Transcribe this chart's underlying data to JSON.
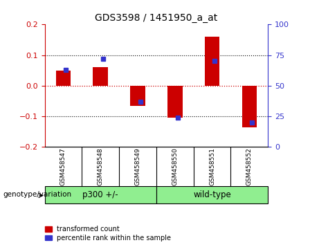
{
  "title": "GDS3598 / 1451950_a_at",
  "samples": [
    "GSM458547",
    "GSM458548",
    "GSM458549",
    "GSM458550",
    "GSM458551",
    "GSM458552"
  ],
  "red_values": [
    0.05,
    0.06,
    -0.065,
    -0.105,
    0.16,
    -0.135
  ],
  "blue_percentile": [
    63,
    72,
    37,
    24,
    70,
    20
  ],
  "ylim_left": [
    -0.2,
    0.2
  ],
  "ylim_right": [
    0,
    100
  ],
  "yticks_left": [
    -0.2,
    -0.1,
    0.0,
    0.1,
    0.2
  ],
  "yticks_right": [
    0,
    25,
    50,
    75,
    100
  ],
  "left_color": "#CC0000",
  "right_color": "#3333CC",
  "bar_width": 0.4,
  "label_area_color": "#d3d3d3",
  "group_color": "#90EE90",
  "genotype_label": "genotype/variation",
  "legend_red": "transformed count",
  "legend_blue": "percentile rank within the sample",
  "group1_label": "p300 +/-",
  "group2_label": "wild-type"
}
